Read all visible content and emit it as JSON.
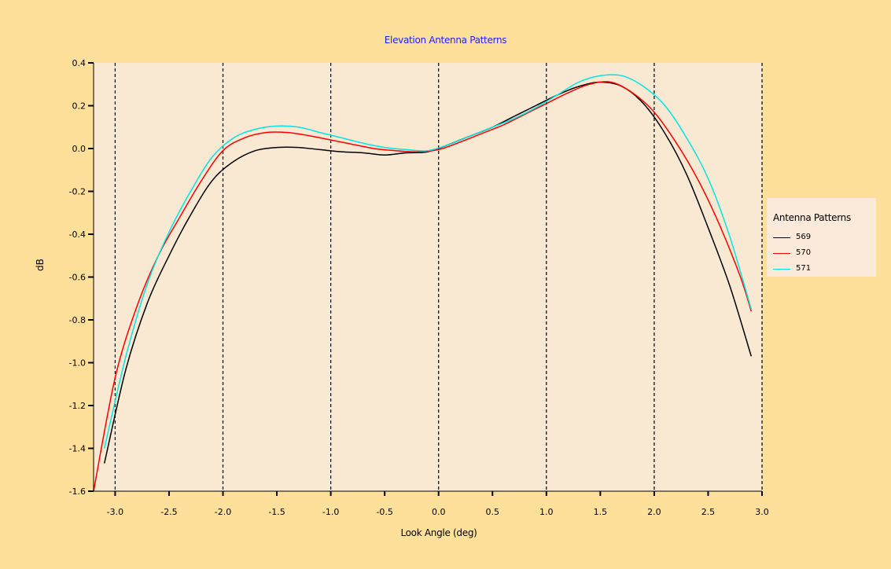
{
  "chart_data": {
    "type": "line",
    "title": "Elevation Antenna Patterns",
    "xlabel": "Look Angle (deg)",
    "ylabel": "dB",
    "xlim": [
      -3.2,
      3.0
    ],
    "ylim": [
      -1.6,
      0.4
    ],
    "x_ticks": [
      -3.0,
      -2.5,
      -2.0,
      -1.5,
      -1.0,
      -0.5,
      0.0,
      0.5,
      1.0,
      1.5,
      2.0,
      2.5,
      3.0
    ],
    "x_tick_labels": [
      "-3.0",
      "-2.5",
      "-2.0",
      "-1.5",
      "-1.0",
      "-0.5",
      "0.0",
      "0.5",
      "1.0",
      "1.5",
      "2.0",
      "2.5",
      "3.0"
    ],
    "y_ticks": [
      0.4,
      0.2,
      0.0,
      -0.2,
      -0.4,
      -0.6,
      -0.8,
      -1.0,
      -1.2,
      -1.4,
      -1.6
    ],
    "y_tick_labels": [
      "0.4",
      "0.2",
      "0.0",
      "-0.2",
      "-0.4",
      "-0.6",
      "-0.8",
      "-1.0",
      "-1.2",
      "-1.4",
      "-1.6"
    ],
    "grid": "vertical dashed lines at integer look angles",
    "legend": {
      "title": "Antenna Patterns",
      "position": "right"
    },
    "colors": {
      "background": "#ffe09a",
      "plot_area": "#f9e8d2",
      "title": "#2020ff"
    },
    "series": [
      {
        "name": "569",
        "color": "#000000",
        "x": [
          -3.1,
          -2.9,
          -2.7,
          -2.5,
          -2.3,
          -2.1,
          -1.9,
          -1.7,
          -1.5,
          -1.3,
          -1.1,
          -0.9,
          -0.7,
          -0.5,
          -0.3,
          -0.1,
          0.1,
          0.3,
          0.5,
          0.7,
          0.9,
          1.1,
          1.3,
          1.5,
          1.7,
          1.9,
          2.1,
          2.3,
          2.5,
          2.7,
          2.9
        ],
        "values": [
          -1.47,
          -1.03,
          -0.72,
          -0.5,
          -0.31,
          -0.15,
          -0.06,
          -0.01,
          0.005,
          0.005,
          -0.005,
          -0.015,
          -0.02,
          -0.03,
          -0.02,
          -0.015,
          0.02,
          0.06,
          0.1,
          0.15,
          0.2,
          0.25,
          0.29,
          0.31,
          0.29,
          0.21,
          0.07,
          -0.12,
          -0.37,
          -0.64,
          -0.97
        ]
      },
      {
        "name": "570",
        "color": "#ff0000",
        "x": [
          -3.2,
          -3.0,
          -2.8,
          -2.6,
          -2.4,
          -2.2,
          -2.0,
          -1.8,
          -1.6,
          -1.4,
          -1.2,
          -1.0,
          -0.8,
          -0.6,
          -0.4,
          -0.2,
          0.0,
          0.2,
          0.4,
          0.6,
          0.8,
          1.0,
          1.2,
          1.4,
          1.6,
          1.8,
          2.0,
          2.2,
          2.4,
          2.6,
          2.8,
          2.9
        ],
        "values": [
          -1.6,
          -1.07,
          -0.74,
          -0.5,
          -0.32,
          -0.15,
          -0.01,
          0.05,
          0.075,
          0.075,
          0.06,
          0.04,
          0.02,
          0.0,
          -0.01,
          -0.015,
          -0.005,
          0.03,
          0.07,
          0.11,
          0.16,
          0.21,
          0.26,
          0.3,
          0.31,
          0.26,
          0.17,
          0.03,
          -0.14,
          -0.35,
          -0.6,
          -0.76
        ]
      },
      {
        "name": "571",
        "color": "#00e5e5",
        "x": [
          -3.1,
          -2.9,
          -2.7,
          -2.5,
          -2.3,
          -2.1,
          -1.9,
          -1.7,
          -1.5,
          -1.3,
          -1.1,
          -0.9,
          -0.7,
          -0.5,
          -0.3,
          -0.1,
          0.1,
          0.3,
          0.5,
          0.7,
          0.9,
          1.1,
          1.3,
          1.5,
          1.7,
          1.9,
          2.1,
          2.3,
          2.5,
          2.7,
          2.9
        ],
        "values": [
          -1.4,
          -0.97,
          -0.63,
          -0.39,
          -0.2,
          -0.04,
          0.05,
          0.09,
          0.105,
          0.1,
          0.075,
          0.05,
          0.025,
          0.005,
          -0.005,
          -0.01,
          0.02,
          0.06,
          0.1,
          0.14,
          0.19,
          0.25,
          0.31,
          0.34,
          0.34,
          0.29,
          0.2,
          0.05,
          -0.14,
          -0.41,
          -0.75
        ]
      }
    ]
  }
}
